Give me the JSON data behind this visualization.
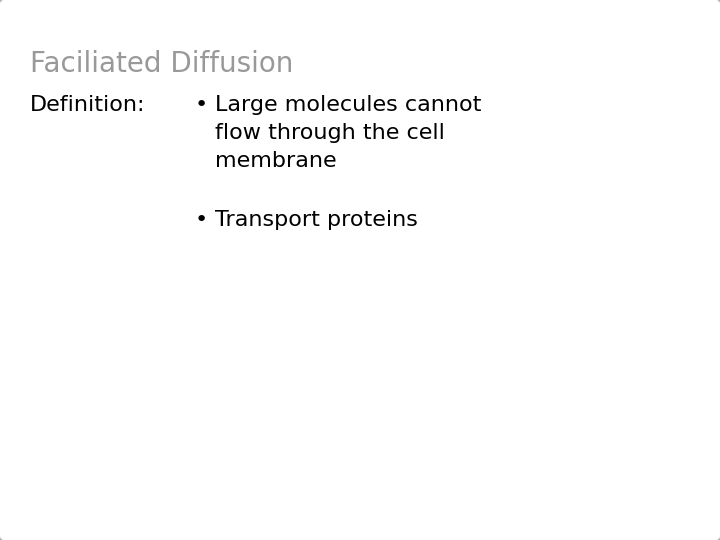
{
  "title": "Faciliated Diffusion",
  "title_color": "#999999",
  "title_fontsize": 20,
  "title_fontweight": "normal",
  "body_label": "Definition:",
  "body_label_fontsize": 16,
  "body_label_fontweight": "normal",
  "body_label_color": "#000000",
  "bullet_points": [
    "Large molecules cannot\nflow through the cell\nmembrane",
    "Transport proteins"
  ],
  "bullet_fontsize": 16,
  "bullet_color": "#000000",
  "background_color": "#ffffff",
  "border_color": "#bbbbbb",
  "border_linewidth": 1.5,
  "fig_width": 7.2,
  "fig_height": 5.4,
  "dpi": 100
}
